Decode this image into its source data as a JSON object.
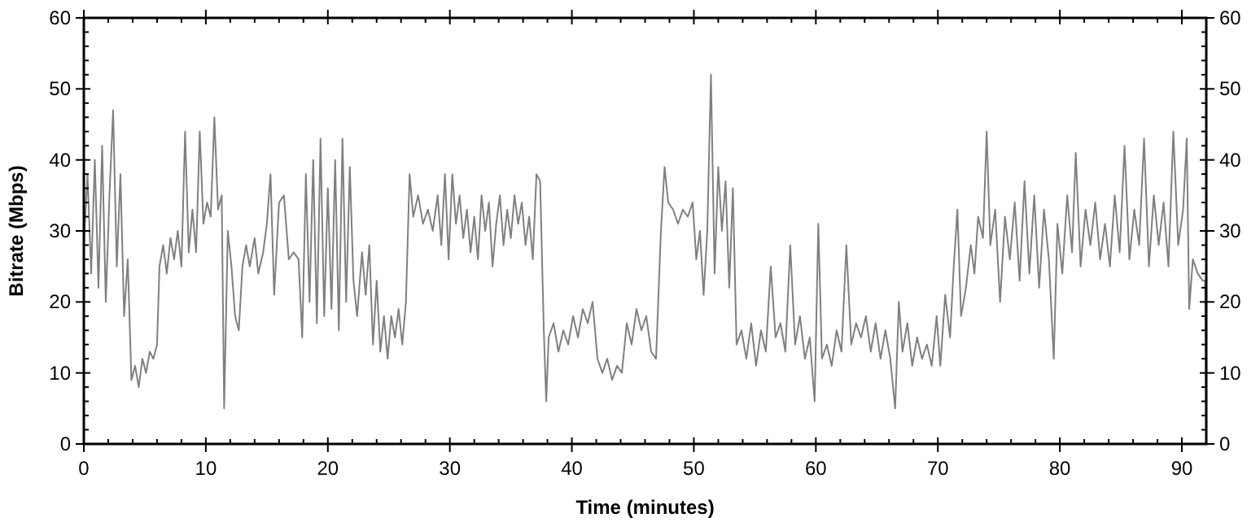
{
  "chart_data": {
    "type": "line",
    "xlabel": "Time (minutes)",
    "ylabel": "Bitrate (Mbps)",
    "xlim": [
      0,
      92
    ],
    "ylim": [
      0,
      60
    ],
    "y2lim": [
      0,
      60
    ],
    "xticks": [
      0,
      {
        "value": 2,
        "label": null
      },
      {
        "value": 4,
        "label": null
      },
      {
        "value": 6,
        "label": null
      },
      {
        "value": 8,
        "label": null
      },
      10,
      {
        "value": 12,
        "label": null
      },
      {
        "value": 14,
        "label": null
      },
      {
        "value": 16,
        "label": null
      },
      {
        "value": 18,
        "label": null
      },
      20,
      {
        "value": 22,
        "label": null
      },
      {
        "value": 24,
        "label": null
      },
      {
        "value": 26,
        "label": null
      },
      {
        "value": 28,
        "label": null
      },
      30,
      {
        "value": 32,
        "label": null
      },
      {
        "value": 34,
        "label": null
      },
      {
        "value": 36,
        "label": null
      },
      {
        "value": 38,
        "label": null
      },
      40,
      {
        "value": 42,
        "label": null
      },
      {
        "value": 44,
        "label": null
      },
      {
        "value": 46,
        "label": null
      },
      {
        "value": 48,
        "label": null
      },
      50,
      {
        "value": 52,
        "label": null
      },
      {
        "value": 54,
        "label": null
      },
      {
        "value": 56,
        "label": null
      },
      {
        "value": 58,
        "label": null
      },
      60,
      {
        "value": 62,
        "label": null
      },
      {
        "value": 64,
        "label": null
      },
      {
        "value": 66,
        "label": null
      },
      {
        "value": 68,
        "label": null
      },
      70,
      {
        "value": 72,
        "label": null
      },
      {
        "value": 74,
        "label": null
      },
      {
        "value": 76,
        "label": null
      },
      {
        "value": 78,
        "label": null
      },
      80,
      {
        "value": 82,
        "label": null
      },
      {
        "value": 84,
        "label": null
      },
      {
        "value": 86,
        "label": null
      },
      {
        "value": 88,
        "label": null
      },
      90,
      {
        "value": 92,
        "label": null
      }
    ],
    "yticks": [
      0,
      {
        "value": 2,
        "label": null
      },
      {
        "value": 4,
        "label": null
      },
      {
        "value": 6,
        "label": null
      },
      {
        "value": 8,
        "label": null
      },
      10,
      {
        "value": 12,
        "label": null
      },
      {
        "value": 14,
        "label": null
      },
      {
        "value": 16,
        "label": null
      },
      {
        "value": 18,
        "label": null
      },
      20,
      {
        "value": 22,
        "label": null
      },
      {
        "value": 24,
        "label": null
      },
      {
        "value": 26,
        "label": null
      },
      {
        "value": 28,
        "label": null
      },
      30,
      {
        "value": 32,
        "label": null
      },
      {
        "value": 34,
        "label": null
      },
      {
        "value": 36,
        "label": null
      },
      {
        "value": 38,
        "label": null
      },
      40,
      {
        "value": 42,
        "label": null
      },
      {
        "value": 44,
        "label": null
      },
      {
        "value": 46,
        "label": null
      },
      {
        "value": 48,
        "label": null
      },
      50,
      {
        "value": 52,
        "label": null
      },
      {
        "value": 54,
        "label": null
      },
      {
        "value": 56,
        "label": null
      },
      {
        "value": 58,
        "label": null
      },
      60
    ],
    "y2ticks": [
      0,
      {
        "value": 2,
        "label": null
      },
      {
        "value": 4,
        "label": null
      },
      {
        "value": 6,
        "label": null
      },
      {
        "value": 8,
        "label": null
      },
      10,
      {
        "value": 12,
        "label": null
      },
      {
        "value": 14,
        "label": null
      },
      {
        "value": 16,
        "label": null
      },
      {
        "value": 18,
        "label": null
      },
      20,
      {
        "value": 22,
        "label": null
      },
      {
        "value": 24,
        "label": null
      },
      {
        "value": 26,
        "label": null
      },
      {
        "value": 28,
        "label": null
      },
      30,
      {
        "value": 32,
        "label": null
      },
      {
        "value": 34,
        "label": null
      },
      {
        "value": 36,
        "label": null
      },
      {
        "value": 38,
        "label": null
      },
      40,
      {
        "value": 42,
        "label": null
      },
      {
        "value": 44,
        "label": null
      },
      {
        "value": 46,
        "label": null
      },
      {
        "value": 48,
        "label": null
      },
      50,
      {
        "value": 52,
        "label": null
      },
      {
        "value": 54,
        "label": null
      },
      {
        "value": 56,
        "label": null
      },
      {
        "value": 58,
        "label": null
      },
      60
    ],
    "x": [
      0,
      0.3,
      0.6,
      0.9,
      1.2,
      1.5,
      1.8,
      2.1,
      2.4,
      2.7,
      3.0,
      3.3,
      3.6,
      3.9,
      4.2,
      4.5,
      4.8,
      5.1,
      5.4,
      5.7,
      6.0,
      6.2,
      6.5,
      6.8,
      7.1,
      7.4,
      7.7,
      8.0,
      8.3,
      8.6,
      8.9,
      9.2,
      9.5,
      9.8,
      10.1,
      10.4,
      10.7,
      11.0,
      11.3,
      11.5,
      11.8,
      12.1,
      12.4,
      12.7,
      13.0,
      13.3,
      13.6,
      14.0,
      14.3,
      14.7,
      15.0,
      15.3,
      15.6,
      16.0,
      16.4,
      16.8,
      17.2,
      17.6,
      17.9,
      18.2,
      18.5,
      18.8,
      19.1,
      19.4,
      19.7,
      20.0,
      20.3,
      20.6,
      20.9,
      21.2,
      21.5,
      21.8,
      22.1,
      22.4,
      22.8,
      23.1,
      23.4,
      23.7,
      24.0,
      24.3,
      24.6,
      24.9,
      25.2,
      25.5,
      25.8,
      26.1,
      26.4,
      26.7,
      27.0,
      27.4,
      27.8,
      28.2,
      28.6,
      29.0,
      29.3,
      29.6,
      29.9,
      30.2,
      30.5,
      30.8,
      31.1,
      31.4,
      31.7,
      32.0,
      32.3,
      32.6,
      32.9,
      33.2,
      33.5,
      33.8,
      34.1,
      34.4,
      34.7,
      35.0,
      35.3,
      35.6,
      35.9,
      36.2,
      36.5,
      36.8,
      37.1,
      37.4,
      37.7,
      37.9,
      38.1,
      38.5,
      38.9,
      39.3,
      39.7,
      40.1,
      40.5,
      40.9,
      41.3,
      41.7,
      42.1,
      42.5,
      42.9,
      43.3,
      43.7,
      44.1,
      44.5,
      44.9,
      45.3,
      45.7,
      46.1,
      46.5,
      46.9,
      47.3,
      47.6,
      47.9,
      48.3,
      48.7,
      49.1,
      49.5,
      49.9,
      50.2,
      50.5,
      50.8,
      51.1,
      51.4,
      51.7,
      52.0,
      52.3,
      52.6,
      52.9,
      53.2,
      53.5,
      53.9,
      54.3,
      54.7,
      55.1,
      55.5,
      55.9,
      56.3,
      56.7,
      57.1,
      57.5,
      57.9,
      58.3,
      58.7,
      59.1,
      59.5,
      59.9,
      60.2,
      60.5,
      60.9,
      61.3,
      61.7,
      62.1,
      62.5,
      62.9,
      63.3,
      63.7,
      64.1,
      64.5,
      64.9,
      65.3,
      65.7,
      66.1,
      66.5,
      66.8,
      67.1,
      67.5,
      67.9,
      68.3,
      68.7,
      69.1,
      69.5,
      69.9,
      70.2,
      70.6,
      71.0,
      71.3,
      71.6,
      71.9,
      72.3,
      72.7,
      73.0,
      73.3,
      73.7,
      74.0,
      74.3,
      74.7,
      75.1,
      75.5,
      75.9,
      76.3,
      76.7,
      77.1,
      77.5,
      77.9,
      78.3,
      78.7,
      79.1,
      79.5,
      79.8,
      80.2,
      80.6,
      81.0,
      81.3,
      81.7,
      82.1,
      82.5,
      82.9,
      83.3,
      83.7,
      84.1,
      84.5,
      84.9,
      85.3,
      85.7,
      86.1,
      86.5,
      86.9,
      87.3,
      87.7,
      88.1,
      88.5,
      88.9,
      89.3,
      89.7,
      90.1,
      90.4,
      90.6,
      90.9,
      91.3,
      91.7,
      91.9,
      92.0
    ],
    "series": [
      {
        "color": "#808080",
        "values": [
          28,
          38,
          24,
          40,
          22,
          42,
          20,
          35,
          47,
          25,
          38,
          18,
          26,
          9,
          11,
          8,
          12,
          10,
          13,
          12,
          14,
          25,
          28,
          24,
          29,
          26,
          30,
          25,
          44,
          27,
          33,
          27,
          44,
          31,
          34,
          32,
          46,
          33,
          35,
          5,
          30,
          25,
          18,
          16,
          25,
          28,
          25,
          29,
          24,
          27,
          31,
          38,
          21,
          34,
          35,
          26,
          27,
          26,
          15,
          38,
          20,
          40,
          17,
          43,
          18,
          36,
          19,
          40,
          16,
          43,
          20,
          39,
          23,
          18,
          27,
          21,
          28,
          14,
          23,
          13,
          18,
          12,
          18,
          15,
          19,
          14,
          20,
          38,
          32,
          35,
          31,
          33,
          30,
          35,
          28,
          38,
          26,
          38,
          31,
          35,
          29,
          33,
          27,
          32,
          26,
          35,
          30,
          34,
          25,
          31,
          35,
          28,
          33,
          29,
          35,
          31,
          34,
          28,
          32,
          26,
          38,
          37,
          16,
          6,
          15,
          17,
          13,
          16,
          14,
          18,
          15,
          19,
          17,
          20,
          12,
          10,
          12,
          9,
          11,
          10,
          17,
          14,
          19,
          16,
          18,
          13,
          12,
          30,
          39,
          34,
          33,
          31,
          33,
          32,
          34,
          26,
          30,
          21,
          30,
          52,
          24,
          39,
          30,
          37,
          22,
          36,
          14,
          16,
          12,
          17,
          11,
          16,
          13,
          25,
          15,
          17,
          13,
          28,
          14,
          18,
          12,
          15,
          6,
          31,
          12,
          14,
          11,
          16,
          13,
          28,
          14,
          17,
          15,
          18,
          13,
          17,
          12,
          16,
          12,
          5,
          20,
          13,
          17,
          11,
          15,
          12,
          14,
          11,
          18,
          11,
          21,
          15,
          25,
          33,
          18,
          22,
          28,
          24,
          32,
          29,
          44,
          28,
          33,
          20,
          32,
          26,
          34,
          23,
          37,
          24,
          35,
          22,
          33,
          26,
          12,
          31,
          24,
          35,
          27,
          41,
          25,
          33,
          28,
          34,
          26,
          31,
          25,
          35,
          27,
          42,
          26,
          33,
          28,
          43,
          25,
          35,
          28,
          34,
          25,
          44,
          28,
          33,
          43,
          19,
          26,
          24,
          23,
          23,
          0
        ]
      }
    ]
  }
}
